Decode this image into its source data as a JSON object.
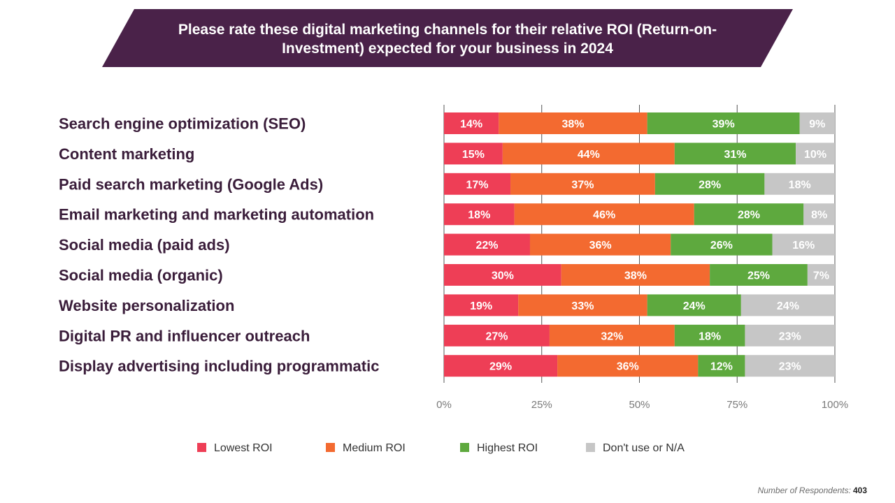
{
  "header": {
    "title": "Please rate these digital marketing channels for their relative ROI (Return-on-Investment) expected for your business in 2024"
  },
  "colors": {
    "banner": "#4a2249",
    "category_text": "#3a1d3a",
    "axis_text": "#7a7a7a",
    "grid": "#555555"
  },
  "chart_data": {
    "type": "bar",
    "orientation": "horizontal",
    "stacked": true,
    "categories": [
      "Search engine optimization (SEO)",
      "Content marketing",
      "Paid search marketing (Google Ads)",
      "Email marketing and marketing automation",
      "Social media (paid ads)",
      "Social media (organic)",
      "Website personalization",
      "Digital PR and influencer outreach",
      "Display advertising including programmatic"
    ],
    "series": [
      {
        "name": "Lowest ROI",
        "color": "#ee3e56",
        "values": [
          14,
          15,
          17,
          18,
          22,
          30,
          19,
          27,
          29
        ],
        "labels": [
          "14%",
          "15%",
          "17%",
          "18%",
          "22%",
          "30%",
          "19%",
          "27%",
          "29%"
        ]
      },
      {
        "name": "Medium ROI",
        "color": "#f36a30",
        "values": [
          38,
          44,
          37,
          46,
          36,
          38,
          33,
          32,
          36
        ],
        "labels": [
          "38%",
          "44%",
          "37%",
          "46%",
          "36%",
          "38%",
          "33%",
          "32%",
          "36%"
        ]
      },
      {
        "name": "Highest ROI",
        "color": "#5ea93e",
        "values": [
          39,
          31,
          28,
          28,
          26,
          25,
          24,
          18,
          12
        ],
        "labels": [
          "39%",
          "31%",
          "28%",
          "28%",
          "26%",
          "25%",
          "24%",
          "18%",
          "12%"
        ]
      },
      {
        "name": "Don't use or N/A",
        "color": "#c6c6c6",
        "values": [
          9,
          10,
          18,
          8,
          16,
          7,
          24,
          23,
          23
        ],
        "labels": [
          "9%",
          "10%",
          "18%",
          "8%",
          "16%",
          "7%",
          "24%",
          "23%",
          "23%"
        ]
      }
    ],
    "xlim": [
      0,
      100
    ],
    "x_ticks": [
      "0%",
      "25%",
      "50%",
      "75%",
      "100%"
    ],
    "grid": true,
    "legend_position": "bottom"
  },
  "footnote": {
    "label": "Number of Respondents:",
    "value": "403"
  }
}
